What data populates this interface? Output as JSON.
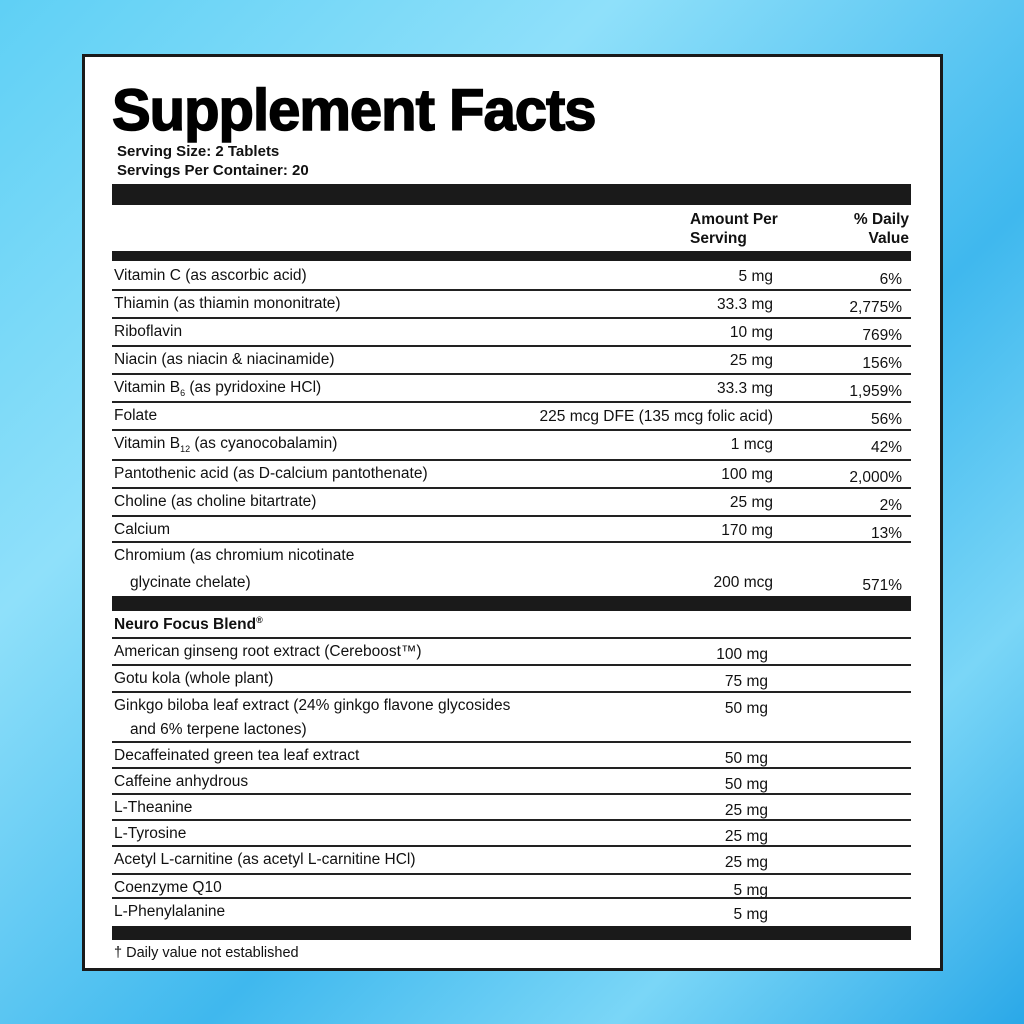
{
  "title": "Supplement Facts",
  "serving_size": "Serving Size: 2 Tablets",
  "servings_per_container": "Servings Per Container: 20",
  "headers": {
    "amount_1": "Amount Per",
    "amount_2": "Serving",
    "dv_1": "% Daily",
    "dv_2": "Value"
  },
  "vitamins": [
    {
      "name": "Vitamin C (as ascorbic acid)",
      "amount": "5 mg",
      "dv": "6%"
    },
    {
      "name": "Thiamin (as thiamin mononitrate)",
      "amount": "33.3 mg",
      "dv": "2,775%"
    },
    {
      "name": "Riboflavin",
      "amount": "10 mg",
      "dv": "769%"
    },
    {
      "name": "Niacin (as niacin & niacinamide)",
      "amount": "25 mg",
      "dv": "156%"
    },
    {
      "name_pre": "Vitamin B",
      "name_sub": "6",
      "name_post": " (as pyridoxine HCl)",
      "amount": "33.3 mg",
      "dv": "1,959%"
    },
    {
      "name": "Folate",
      "amount": "225 mcg DFE (135 mcg folic acid)",
      "dv": "56%"
    },
    {
      "name_pre": "Vitamin B",
      "name_sub": "12",
      "name_post": " (as cyanocobalamin)",
      "amount": "1 mcg",
      "dv": "42%"
    },
    {
      "name": "Pantothenic acid (as D-calcium pantothenate)",
      "amount": "100 mg",
      "dv": "2,000%"
    },
    {
      "name": "Choline (as choline bitartrate)",
      "amount": "25 mg",
      "dv": "2%"
    },
    {
      "name": "Calcium",
      "amount": "170 mg",
      "dv": "13%"
    },
    {
      "name": "Chromium (as chromium nicotinate",
      "name_2": "glycinate chelate)",
      "amount": "200 mcg",
      "dv": "571%"
    }
  ],
  "blend": {
    "title": "Neuro Focus Blend",
    "reg": "®",
    "items": [
      {
        "name": "American ginseng root extract (Cereboost™)",
        "amount": "100 mg"
      },
      {
        "name": "Gotu kola (whole plant)",
        "amount": "75 mg"
      },
      {
        "name": "Ginkgo biloba leaf extract (24% ginkgo flavone glycosides",
        "name_2": "and 6% terpene lactones)",
        "amount": "50 mg"
      },
      {
        "name": "Decaffeinated green tea leaf extract",
        "amount": "50 mg"
      },
      {
        "name": "Caffeine anhydrous",
        "amount": "50 mg"
      },
      {
        "name": "L-Theanine",
        "amount": "25 mg"
      },
      {
        "name": "L-Tyrosine",
        "amount": "25 mg"
      },
      {
        "name": "Acetyl L-carnitine (as acetyl L-carnitine HCl)",
        "amount": "25 mg"
      },
      {
        "name": "Coenzyme Q10",
        "amount": "5 mg"
      },
      {
        "name": "L-Phenylalanine",
        "amount": "5 mg"
      }
    ]
  },
  "footnote": "† Daily value not established"
}
